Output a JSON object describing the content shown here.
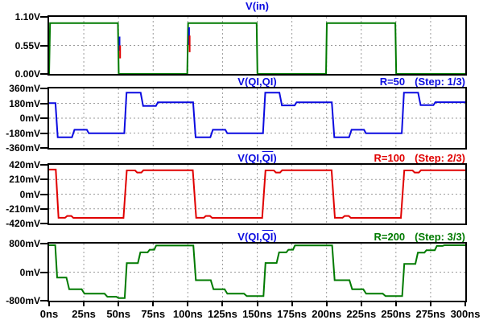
{
  "colors": {
    "blue": "#0b0be0",
    "red": "#e00000",
    "green": "#007a00",
    "grid": "#9a9a9a",
    "text": "#000000",
    "background": "#ffffff"
  },
  "chart_data": {
    "type": "line",
    "time_axis": {
      "min": 0,
      "max": 300,
      "unit": "ns",
      "tick_step": 25,
      "tick_labels": [
        "0ns",
        "25ns",
        "50ns",
        "75ns",
        "100ns",
        "125ns",
        "150ns",
        "175ns",
        "200ns",
        "225ns",
        "250ns",
        "275ns",
        "300ns"
      ],
      "grid_values": [
        25,
        50,
        75,
        100,
        125,
        150,
        175,
        200,
        225,
        250,
        275
      ]
    },
    "panes": [
      {
        "title": {
          "prefix": "V(in)",
          "overline": "",
          "suffix": ""
        },
        "title_color": "blue",
        "ylim": [
          0,
          1.1
        ],
        "y_unit": "V",
        "yticks": [
          {
            "value": 1.1,
            "label": "1.10V"
          },
          {
            "value": 0.55,
            "label": "0.55V"
          },
          {
            "value": 0,
            "label": "0.00V"
          }
        ],
        "hgrid": [
          0.55
        ],
        "traces": [
          {
            "color": "green",
            "points": [
              [
                0,
                0
              ],
              [
                0.7,
                0.98
              ],
              [
                49.6,
                0.98
              ],
              [
                50.2,
                0
              ],
              [
                99.6,
                0
              ],
              [
                100.2,
                0.98
              ],
              [
                149.6,
                0.98
              ],
              [
                150.2,
                0
              ],
              [
                199.6,
                0
              ],
              [
                200.2,
                0.98
              ],
              [
                249.6,
                0.98
              ],
              [
                250.2,
                0
              ],
              [
                300,
                0
              ]
            ]
          },
          {
            "color": "blue",
            "points": [
              [
                50.8,
                0.72
              ],
              [
                50.8,
                0.45
              ]
            ]
          },
          {
            "color": "red",
            "points": [
              [
                51.2,
                0.55
              ],
              [
                51.2,
                0.3
              ]
            ]
          },
          {
            "color": "blue",
            "points": [
              [
                100.9,
                0.9
              ],
              [
                100.9,
                0.56
              ]
            ]
          },
          {
            "color": "red",
            "points": [
              [
                101.3,
                0.74
              ],
              [
                101.3,
                0.42
              ]
            ]
          }
        ]
      },
      {
        "title": {
          "prefix": "V(QI,",
          "overline": "QI",
          "suffix": ")"
        },
        "title_color": "blue",
        "annotation": {
          "r": "R=50",
          "step": "(Step: 1/3)",
          "color": "blue"
        },
        "ylim": [
          -360,
          360
        ],
        "y_unit": "mV",
        "yticks": [
          {
            "value": 360,
            "label": "360mV"
          },
          {
            "value": 180,
            "label": "180mV"
          },
          {
            "value": 0,
            "label": "0mV"
          },
          {
            "value": -180,
            "label": "-180mV"
          },
          {
            "value": -360,
            "label": "-360mV"
          }
        ],
        "hgrid": [
          180,
          0,
          -180
        ],
        "traces": [
          {
            "color": "blue",
            "points": [
              [
                0,
                182
              ],
              [
                4.6,
                182
              ],
              [
                6.2,
                -232
              ],
              [
                16.5,
                -232
              ],
              [
                18.3,
                -140
              ],
              [
                27.2,
                -140
              ],
              [
                28.6,
                -182
              ],
              [
                54.2,
                -182
              ],
              [
                55.8,
                308
              ],
              [
                66,
                308
              ],
              [
                67.8,
                148
              ],
              [
                77,
                148
              ],
              [
                78.4,
                192
              ],
              [
                103.8,
                192
              ],
              [
                105.6,
                -232
              ],
              [
                116.2,
                -232
              ],
              [
                118,
                -140
              ],
              [
                127,
                -140
              ],
              [
                128.4,
                -182
              ],
              [
                154.2,
                -182
              ],
              [
                155.8,
                308
              ],
              [
                166,
                308
              ],
              [
                167.8,
                155
              ],
              [
                177,
                155
              ],
              [
                178.4,
                192
              ],
              [
                203.8,
                192
              ],
              [
                205.6,
                -232
              ],
              [
                216.2,
                -232
              ],
              [
                218,
                -140
              ],
              [
                227,
                -140
              ],
              [
                228.4,
                -182
              ],
              [
                254.2,
                -182
              ],
              [
                255.8,
                308
              ],
              [
                266,
                308
              ],
              [
                267.8,
                158
              ],
              [
                277,
                158
              ],
              [
                278.4,
                194
              ],
              [
                300,
                194
              ]
            ]
          }
        ]
      },
      {
        "title": {
          "prefix": "V(QI,",
          "overline": "QI",
          "suffix": ")"
        },
        "title_color": "blue",
        "annotation": {
          "r": "R=100",
          "step": "(Step: 2/3)",
          "color": "red"
        },
        "ylim": [
          -420,
          420
        ],
        "y_unit": "mV",
        "yticks": [
          {
            "value": 420,
            "label": "420mV"
          },
          {
            "value": 210,
            "label": "210mV"
          },
          {
            "value": 0,
            "label": "0mV"
          },
          {
            "value": -210,
            "label": "-210mV"
          },
          {
            "value": -420,
            "label": "-420mV"
          }
        ],
        "hgrid": [
          210,
          0,
          -210
        ],
        "traces": [
          {
            "color": "red",
            "points": [
              [
                0,
                352
              ],
              [
                4.8,
                352
              ],
              [
                6.8,
                -338
              ],
              [
                11.5,
                -338
              ],
              [
                13,
                -312
              ],
              [
                16,
                -312
              ],
              [
                17.5,
                -340
              ],
              [
                53.6,
                -340
              ],
              [
                56,
                340
              ],
              [
                62,
                340
              ],
              [
                63.5,
                310
              ],
              [
                66.5,
                310
              ],
              [
                68,
                342
              ],
              [
                103.6,
                342
              ],
              [
                106,
                -338
              ],
              [
                111.5,
                -338
              ],
              [
                113,
                -312
              ],
              [
                116,
                -312
              ],
              [
                117.5,
                -340
              ],
              [
                153.6,
                -340
              ],
              [
                156,
                340
              ],
              [
                162,
                340
              ],
              [
                163.5,
                310
              ],
              [
                166.5,
                310
              ],
              [
                168,
                342
              ],
              [
                203.6,
                342
              ],
              [
                206,
                -338
              ],
              [
                211.5,
                -338
              ],
              [
                213,
                -312
              ],
              [
                216,
                -312
              ],
              [
                217.5,
                -340
              ],
              [
                253.6,
                -340
              ],
              [
                256,
                340
              ],
              [
                262,
                340
              ],
              [
                263.5,
                310
              ],
              [
                266.5,
                310
              ],
              [
                268,
                342
              ],
              [
                300,
                342
              ]
            ]
          }
        ]
      },
      {
        "title": {
          "prefix": "V(QI,",
          "overline": "QI",
          "suffix": ")"
        },
        "title_color": "blue",
        "annotation": {
          "r": "R=200",
          "step": "(Step: 3/3)",
          "color": "green"
        },
        "ylim": [
          -800,
          800
        ],
        "y_unit": "mV",
        "yticks": [
          {
            "value": 800,
            "label": "800mV"
          },
          {
            "value": 0,
            "label": "0mV"
          },
          {
            "value": -800,
            "label": "-800mV"
          }
        ],
        "hgrid": [
          0
        ],
        "traces": [
          {
            "color": "green",
            "points": [
              [
                0,
                755
              ],
              [
                4.4,
                755
              ],
              [
                5.8,
                -150
              ],
              [
                12.5,
                -150
              ],
              [
                14.5,
                -480
              ],
              [
                23.5,
                -480
              ],
              [
                25.5,
                -605
              ],
              [
                40,
                -605
              ],
              [
                42,
                -690
              ],
              [
                48.5,
                -690
              ],
              [
                50,
                -725
              ],
              [
                54.5,
                -725
              ],
              [
                56,
                255
              ],
              [
                64,
                255
              ],
              [
                65.8,
                555
              ],
              [
                71,
                555
              ],
              [
                72.5,
                628
              ],
              [
                75.8,
                628
              ],
              [
                77.2,
                745
              ],
              [
                104,
                745
              ],
              [
                105.8,
                -225
              ],
              [
                116.5,
                -225
              ],
              [
                118.5,
                -480
              ],
              [
                126.5,
                -480
              ],
              [
                128.5,
                -605
              ],
              [
                140.5,
                -605
              ],
              [
                142.5,
                -672
              ],
              [
                154.5,
                -672
              ],
              [
                156,
                258
              ],
              [
                164,
                258
              ],
              [
                165.8,
                555
              ],
              [
                171,
                555
              ],
              [
                172.5,
                628
              ],
              [
                175.8,
                628
              ],
              [
                177.2,
                748
              ],
              [
                204,
                748
              ],
              [
                205.8,
                -225
              ],
              [
                216.5,
                -225
              ],
              [
                218.5,
                -480
              ],
              [
                226.5,
                -480
              ],
              [
                228.5,
                -605
              ],
              [
                240.5,
                -605
              ],
              [
                242.5,
                -672
              ],
              [
                254.5,
                -672
              ],
              [
                256,
                232
              ],
              [
                264,
                232
              ],
              [
                265.8,
                545
              ],
              [
                270.5,
                545
              ],
              [
                272,
                615
              ],
              [
                278,
                615
              ],
              [
                279.5,
                735
              ],
              [
                283.5,
                735
              ],
              [
                285,
                755
              ],
              [
                300,
                755
              ]
            ]
          }
        ]
      }
    ]
  }
}
